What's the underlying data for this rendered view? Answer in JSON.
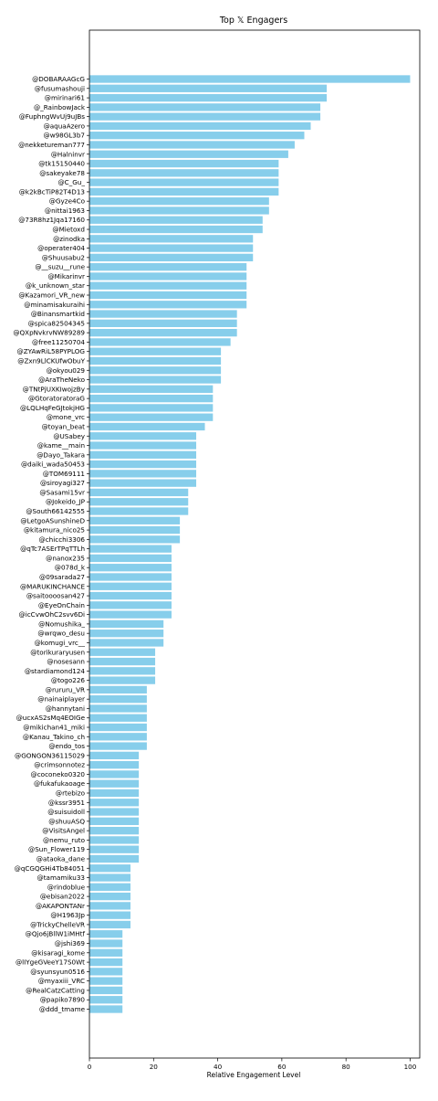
{
  "chart_data": {
    "type": "bar",
    "orientation": "horizontal",
    "title": "Top 𝕏 Engagers",
    "xlabel": "Relative Engagement Level",
    "ylabel": "",
    "xlim": [
      0,
      103
    ],
    "xticks": [
      0,
      20,
      40,
      60,
      80,
      100
    ],
    "grid": false,
    "bar_color": "#87ceeb",
    "categories": [
      "@DOBARAAGcG",
      "@fusumashouji",
      "@mirinari61",
      "@_RainbowJack",
      "@FuphngWvUj9uJBs",
      "@aquaAzero",
      "@w98GL3b7",
      "@nekketureman777",
      "@Halninvr",
      "@tk15150440",
      "@sakeyake78",
      "@C_Gu_",
      "@k2kBcTiP82T4D13",
      "@Gyze4Co",
      "@nittai1963",
      "@73R8hz1Jqa17160",
      "@Mietoxd",
      "@zinodka",
      "@operater404",
      "@Shuusabu2",
      "@__suzu__rune",
      "@Mikarinvr",
      "@k_unknown_star",
      "@Kazamori_VR_new",
      "@minamisakuraihi",
      "@Binansmartkid",
      "@spica82504345",
      "@QXpNvkrvNW89289",
      "@free11250704",
      "@ZYAwRiL58PYPLOG",
      "@Zxn9LlCKUfwObuY",
      "@okyou029",
      "@AraTheNeko",
      "@TNtPjUXKIwojzBy",
      "@GtoratoratoraG",
      "@LQLHqFeGJtokjHG",
      "@mone_vrc",
      "@toyan_beat",
      "@USabey",
      "@kame__main",
      "@Dayo_Takara",
      "@daiki_wada50453",
      "@TOM69111",
      "@siroyagi327",
      "@Sasami15vr",
      "@Jokeido_JP",
      "@South66142555",
      "@LetgoASunshineD",
      "@kitamura_nico25",
      "@chicchi3306",
      "@qTc7ASErTPqTTLh",
      "@nanox235",
      "@078d_k",
      "@09sarada27",
      "@MARUKINCHANCE",
      "@saitoooosan427",
      "@EyeOnChain",
      "@icCvwOhC2svv6Di",
      "@Nomushika_",
      "@wrqwo_desu",
      "@komugi_vrc__",
      "@torikuraryusen",
      "@nosesann",
      "@stardiamond124",
      "@togo226",
      "@rururu_VR",
      "@nainaiplayer",
      "@hannytani",
      "@ucxAS2sMq4EOIGe",
      "@mikichan41_miki",
      "@Kanau_Takino_ch",
      "@endo_tos",
      "@GONGON36115029",
      "@crimsonnotez",
      "@coconeko0320",
      "@fukafukaoage",
      "@rtebizo",
      "@kssr3951",
      "@suisuidoll",
      "@shuuASQ",
      "@VisitsAngel",
      "@nemu_ruto",
      "@Sun_Flower119",
      "@ataoka_dane",
      "@qCGQGHi4Tb84051",
      "@tamamiku33",
      "@rindoblue",
      "@ebisan2022",
      "@AKAPONTANr",
      "@H1963Jp",
      "@TrickyChelleVR",
      "@Qjo6jBllW1iMHtf",
      "@jshi369",
      "@kisaragi_kome",
      "@lIYgeGVeeY17S0Wt",
      "@syunsyun0516",
      "@myaxiii_VRC",
      "@RealCatzCatting",
      "@papiko7890",
      "@ddd_tmame"
    ],
    "values": [
      100,
      74,
      74,
      72,
      72,
      69,
      67,
      64,
      62,
      59,
      59,
      59,
      59,
      56,
      56,
      54,
      54,
      51,
      51,
      51,
      49,
      49,
      49,
      49,
      49,
      46,
      46,
      46,
      44,
      41,
      41,
      41,
      41,
      38.5,
      38.5,
      38.5,
      38.5,
      36,
      33.3,
      33.3,
      33.3,
      33.3,
      33.3,
      33.3,
      30.8,
      30.8,
      30.8,
      28.2,
      28.2,
      28.2,
      25.6,
      25.6,
      25.6,
      25.6,
      25.6,
      25.6,
      25.6,
      25.6,
      23.1,
      23.1,
      23.1,
      20.5,
      20.5,
      20.5,
      20.5,
      17.9,
      17.9,
      17.9,
      17.9,
      17.9,
      17.9,
      17.9,
      15.4,
      15.4,
      15.4,
      15.4,
      15.4,
      15.4,
      15.4,
      15.4,
      15.4,
      15.4,
      15.4,
      15.4,
      12.8,
      12.8,
      12.8,
      12.8,
      12.8,
      12.8,
      12.8,
      10.3,
      10.3,
      10.3,
      10.3,
      10.3,
      10.3,
      10.3,
      10.3,
      10.3
    ]
  }
}
